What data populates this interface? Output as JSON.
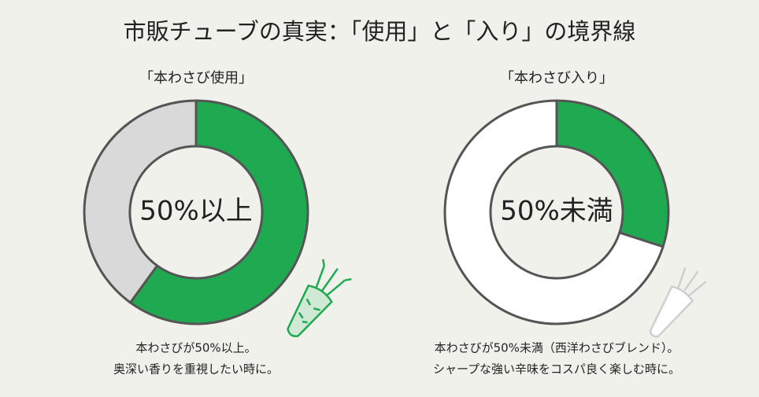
{
  "title": "市販チューブの真実：「使用」と「入り」の境界線",
  "chart_data": [
    {
      "type": "pie",
      "title": "「本わさび使用」",
      "categories": [
        null,
        null
      ],
      "values": [
        60,
        40
      ],
      "colors": [
        "#1faa52",
        "#d9d9d9"
      ],
      "center_label": "50%以上",
      "caption": [
        "本わさびが50%以上。",
        "奥深い香りを重視したい時に。"
      ]
    },
    {
      "type": "pie",
      "title": "「本わさび入り」",
      "categories": [
        null,
        null
      ],
      "values": [
        30,
        70
      ],
      "colors": [
        "#1faa52",
        "#ffffff"
      ],
      "center_label": "50%未満",
      "caption": [
        "本わさびが50%未満（西洋わさびブレンド）。",
        "シャープな強い辛味をコスパ良く楽しむ時に。"
      ]
    }
  ]
}
